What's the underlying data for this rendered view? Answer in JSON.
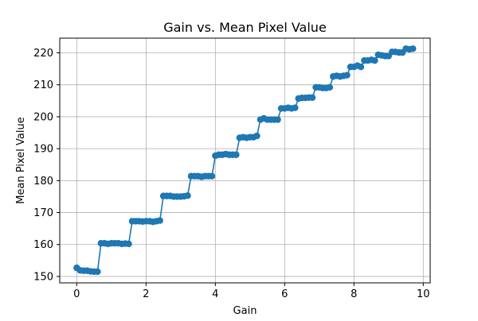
{
  "chart_data": {
    "type": "line",
    "title": "Gain vs. Mean Pixel Value",
    "xlabel": "Gain",
    "ylabel": "Mean Pixel Value",
    "xlim": [
      -0.49,
      10.2
    ],
    "ylim": [
      148.0,
      224.6
    ],
    "xticks": [
      0,
      2,
      4,
      6,
      8,
      10
    ],
    "yticks": [
      150,
      160,
      170,
      180,
      190,
      200,
      210,
      220
    ],
    "grid": true,
    "legend": "none",
    "series_color": "#1f77b4",
    "marker": "circle",
    "x": [
      0.0,
      0.1,
      0.2,
      0.3,
      0.4,
      0.5,
      0.6,
      0.7,
      0.8,
      0.9,
      1.0,
      1.1,
      1.2,
      1.3,
      1.4,
      1.5,
      1.6,
      1.7,
      1.8,
      1.9,
      2.0,
      2.1,
      2.2,
      2.3,
      2.4,
      2.5,
      2.6,
      2.7,
      2.8,
      2.9,
      3.0,
      3.1,
      3.2,
      3.3,
      3.4,
      3.5,
      3.6,
      3.7,
      3.8,
      3.9,
      4.0,
      4.1,
      4.2,
      4.3,
      4.4,
      4.5,
      4.6,
      4.7,
      4.8,
      4.9,
      5.0,
      5.1,
      5.2,
      5.3,
      5.4,
      5.5,
      5.6,
      5.7,
      5.8,
      5.9,
      6.0,
      6.1,
      6.2,
      6.3,
      6.4,
      6.5,
      6.6,
      6.7,
      6.8,
      6.9,
      7.0,
      7.1,
      7.2,
      7.3,
      7.4,
      7.5,
      7.6,
      7.7,
      7.8,
      7.9,
      8.0,
      8.1,
      8.2,
      8.3,
      8.4,
      8.5,
      8.6,
      8.7,
      8.8,
      8.9,
      9.0,
      9.1,
      9.2,
      9.3,
      9.4,
      9.5,
      9.6,
      9.7
    ],
    "y": [
      152.7,
      151.9,
      151.8,
      151.8,
      151.6,
      151.5,
      151.5,
      160.4,
      160.4,
      160.2,
      160.4,
      160.4,
      160.4,
      160.2,
      160.3,
      160.2,
      167.3,
      167.3,
      167.3,
      167.2,
      167.3,
      167.3,
      167.1,
      167.3,
      167.5,
      175.2,
      175.2,
      175.2,
      175.0,
      175.0,
      175.0,
      175.1,
      175.3,
      181.4,
      181.4,
      181.4,
      181.2,
      181.4,
      181.4,
      181.4,
      187.8,
      188.1,
      188.1,
      188.3,
      188.1,
      188.1,
      188.1,
      193.4,
      193.6,
      193.4,
      193.6,
      193.6,
      194.0,
      199.1,
      199.5,
      199.1,
      199.1,
      199.1,
      199.1,
      202.6,
      202.6,
      202.8,
      202.6,
      202.8,
      205.7,
      205.9,
      205.9,
      206.0,
      206.0,
      209.2,
      209.2,
      209.0,
      209.0,
      209.2,
      212.6,
      212.8,
      212.6,
      212.8,
      213.0,
      215.6,
      215.6,
      216.0,
      215.6,
      217.6,
      217.6,
      217.8,
      217.6,
      219.4,
      219.2,
      219.0,
      219.0,
      220.3,
      220.3,
      220.1,
      220.1,
      221.3,
      221.1,
      221.3
    ]
  }
}
